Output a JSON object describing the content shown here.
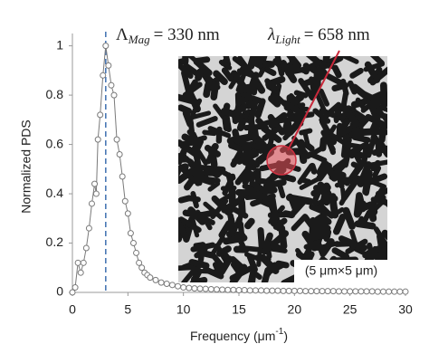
{
  "chart_data": {
    "type": "line",
    "x_label": {
      "text": "Frequency (μm",
      "superscript": "-1",
      "end": ")"
    },
    "y_label": "Normalized PDS",
    "xlim": [
      0,
      30
    ],
    "ylim": [
      0,
      1.05
    ],
    "xticks": [
      0,
      5,
      10,
      15,
      20,
      25,
      30
    ],
    "yticks": [
      0,
      0.2,
      0.4,
      0.6,
      0.8,
      1
    ],
    "series": [
      {
        "color": "#7a7a7a",
        "x": [
          0,
          0.25,
          0.5,
          0.75,
          1,
          1.25,
          1.5,
          1.75,
          2,
          2.15,
          2.3,
          2.5,
          2.75,
          3,
          3.25,
          3.5,
          3.75,
          4,
          4.25,
          4.5,
          4.75,
          5,
          5.25,
          5.5,
          5.75,
          6,
          6.25,
          6.5,
          6.75,
          7,
          7.5,
          8,
          8.5,
          9,
          9.5,
          10,
          10.5,
          11,
          11.5,
          12,
          12.5,
          13,
          13.5,
          14,
          14.5,
          15,
          15.5,
          16,
          16.5,
          17,
          17.5,
          18,
          18.5,
          19,
          19.5,
          20,
          20.5,
          21,
          21.5,
          22,
          22.5,
          23,
          23.5,
          24,
          24.5,
          25,
          25.5,
          26,
          26.5,
          27,
          27.5,
          28,
          28.5,
          29,
          29.5,
          30
        ],
        "values": [
          0,
          0.02,
          0.12,
          0.08,
          0.12,
          0.18,
          0.26,
          0.36,
          0.44,
          0.4,
          0.62,
          0.72,
          0.88,
          1,
          0.92,
          0.84,
          0.8,
          0.62,
          0.56,
          0.47,
          0.37,
          0.32,
          0.24,
          0.2,
          0.16,
          0.12,
          0.1,
          0.08,
          0.07,
          0.06,
          0.05,
          0.04,
          0.035,
          0.03,
          0.025,
          0.02,
          0.018,
          0.016,
          0.015,
          0.014,
          0.013,
          0.012,
          0.011,
          0.01,
          0.01,
          0.009,
          0.009,
          0.008,
          0.008,
          0.008,
          0.007,
          0.007,
          0.007,
          0.006,
          0.006,
          0.006,
          0.006,
          0.005,
          0.005,
          0.005,
          0.005,
          0.005,
          0.005,
          0.004,
          0.004,
          0.004,
          0.004,
          0.004,
          0.004,
          0.004,
          0.003,
          0.003,
          0.003,
          0.003,
          0.003,
          0.003
        ]
      }
    ],
    "vline": 3,
    "vline_color": "#4a78b5",
    "annotation_mag": {
      "symbol": "Λ",
      "subscript": "Mag",
      "text": "= 330 nm"
    },
    "annotation_light": {
      "symbol": "λ",
      "subscript": "Light",
      "text": "= 658 nm"
    },
    "inset_label": "(5 μm×5 μm)"
  }
}
